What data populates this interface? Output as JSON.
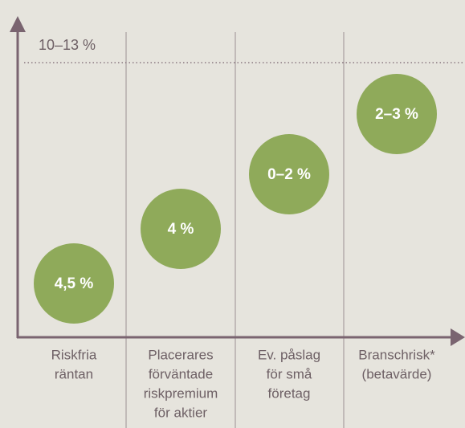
{
  "top_label": "10–13 %",
  "columns": [
    {
      "value": "4,5 %",
      "caption": [
        "Riskfria",
        "räntan"
      ]
    },
    {
      "value": "4 %",
      "caption": [
        "Placerares",
        "förväntade",
        "riskpremium",
        "för aktier"
      ]
    },
    {
      "value": "0–2 %",
      "caption": [
        "Ev. påslag",
        "för små",
        "företag"
      ]
    },
    {
      "value": "2–3 %",
      "caption": [
        "Branschrisk*",
        "(betavärde)"
      ]
    }
  ]
}
